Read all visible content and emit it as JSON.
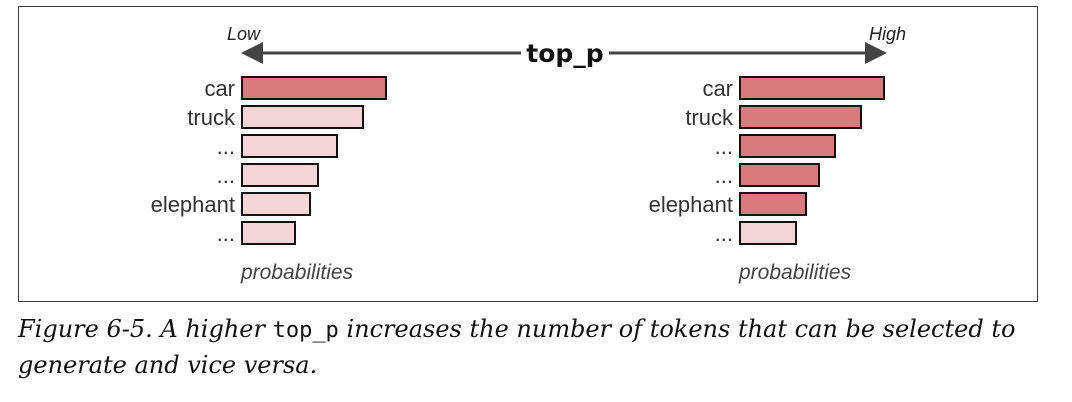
{
  "diagram": {
    "title": "top_p",
    "low_label": "Low",
    "high_label": "High",
    "panels": [
      {
        "id": "low",
        "axis_label": "probabilities",
        "rows": [
          {
            "token": "car",
            "value": 1.0,
            "selected": true
          },
          {
            "token": "truck",
            "value": 0.84,
            "selected": false
          },
          {
            "token": "...",
            "value": 0.66,
            "selected": false
          },
          {
            "token": "...",
            "value": 0.53,
            "selected": false
          },
          {
            "token": "elephant",
            "value": 0.47,
            "selected": false
          },
          {
            "token": "...",
            "value": 0.37,
            "selected": false
          }
        ]
      },
      {
        "id": "high",
        "axis_label": "probabilities",
        "rows": [
          {
            "token": "car",
            "value": 1.0,
            "selected": true
          },
          {
            "token": "truck",
            "value": 0.84,
            "selected": true
          },
          {
            "token": "...",
            "value": 0.66,
            "selected": true
          },
          {
            "token": "...",
            "value": 0.55,
            "selected": true
          },
          {
            "token": "elephant",
            "value": 0.46,
            "selected": true
          },
          {
            "token": "...",
            "value": 0.39,
            "selected": false
          }
        ]
      }
    ],
    "colors": {
      "selected": "#d97a7f",
      "unselected": "#f4d5d7",
      "bar_outline": "#111111",
      "arrow": "#444444"
    }
  },
  "caption": {
    "prefix": "Figure 6-5. A higher ",
    "code": "top_p",
    "suffix": " increases the number of tokens that can be selected to generate and vice versa."
  }
}
